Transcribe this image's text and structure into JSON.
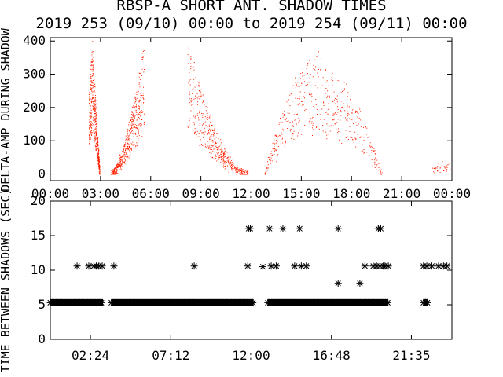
{
  "title": {
    "line1": "RBSP-A SHORT ANT. SHADOW TIMES",
    "line2": "2019 253 (09/10) 00:00 to 2019 254 (09/11) 00:00"
  },
  "colors": {
    "upper_points": "#ff2000",
    "lower_points": "#000000",
    "axes": "#000000"
  },
  "chart_data": [
    {
      "type": "scatter",
      "ylabel": "DELTA-AMP DURING SHADOW",
      "xlim_hours": [
        0,
        24
      ],
      "ylim": [
        -20,
        410
      ],
      "x_tick_labels": [
        "00:00",
        "03:00",
        "06:00",
        "09:00",
        "12:00",
        "15:00",
        "18:00",
        "21:00",
        "00:00"
      ],
      "x_tick_hours": [
        0,
        3,
        6,
        9,
        12,
        15,
        18,
        21,
        24
      ],
      "y_ticks": [
        0,
        100,
        200,
        300,
        400
      ],
      "clusters": [
        {
          "x_range_hours": [
            2.3,
            2.95
          ],
          "y_range": [
            0,
            400
          ],
          "shape": "spike"
        },
        {
          "x_range_hours": [
            3.6,
            5.6
          ],
          "y_range": [
            0,
            400
          ],
          "shape": "rising"
        },
        {
          "x_range_hours": [
            8.2,
            11.8
          ],
          "y_range": [
            0,
            400
          ],
          "shape": "decaying"
        },
        {
          "x_range_hours": [
            12.8,
            19.8
          ],
          "y_range": [
            0,
            390
          ],
          "shape": "peak"
        },
        {
          "x_range_hours": [
            22.8,
            23.9
          ],
          "y_range": [
            0,
            40
          ],
          "shape": "flat"
        }
      ]
    },
    {
      "type": "scatter",
      "ylabel": "TIME BETWEEN SHADOWS (SEC)",
      "xlim_hours": [
        0,
        24
      ],
      "ylim": [
        0,
        20
      ],
      "x_tick_labels": [
        "02:24",
        "07:12",
        "12:00",
        "16:48",
        "21:35"
      ],
      "x_tick_hours": [
        2.4,
        7.2,
        12.0,
        16.8,
        21.58
      ],
      "y_ticks": [
        0,
        5,
        10,
        15,
        20
      ],
      "marker": "asterisk",
      "baseline_value": 5.3,
      "baseline_segments_hours": [
        [
          0,
          3.15
        ],
        [
          3.65,
          12.15
        ],
        [
          13.0,
          20.2
        ],
        [
          22.3,
          22.55
        ]
      ],
      "points": [
        [
          1.6,
          10.6
        ],
        [
          2.3,
          10.6
        ],
        [
          2.6,
          10.6
        ],
        [
          2.75,
          10.6
        ],
        [
          2.9,
          10.6
        ],
        [
          3.1,
          10.6
        ],
        [
          3.8,
          10.6
        ],
        [
          8.6,
          10.6
        ],
        [
          11.8,
          10.6
        ],
        [
          11.85,
          16.0
        ],
        [
          11.95,
          16.0
        ],
        [
          12.7,
          10.5
        ],
        [
          13.2,
          10.6
        ],
        [
          13.5,
          10.6
        ],
        [
          13.1,
          16.0
        ],
        [
          13.9,
          16.0
        ],
        [
          14.9,
          16.0
        ],
        [
          14.6,
          10.6
        ],
        [
          15.0,
          10.6
        ],
        [
          15.3,
          10.6
        ],
        [
          17.2,
          16.0
        ],
        [
          17.2,
          8.1
        ],
        [
          18.5,
          8.1
        ],
        [
          18.8,
          10.6
        ],
        [
          19.3,
          10.6
        ],
        [
          19.5,
          10.6
        ],
        [
          19.7,
          10.6
        ],
        [
          19.9,
          10.6
        ],
        [
          20.0,
          10.6
        ],
        [
          20.2,
          10.6
        ],
        [
          19.6,
          16.0
        ],
        [
          19.75,
          16.0
        ],
        [
          22.3,
          10.6
        ],
        [
          22.5,
          10.6
        ],
        [
          22.8,
          10.6
        ],
        [
          23.2,
          10.6
        ],
        [
          23.5,
          10.6
        ],
        [
          23.7,
          10.6
        ],
        [
          24.1,
          10.6
        ]
      ]
    }
  ]
}
